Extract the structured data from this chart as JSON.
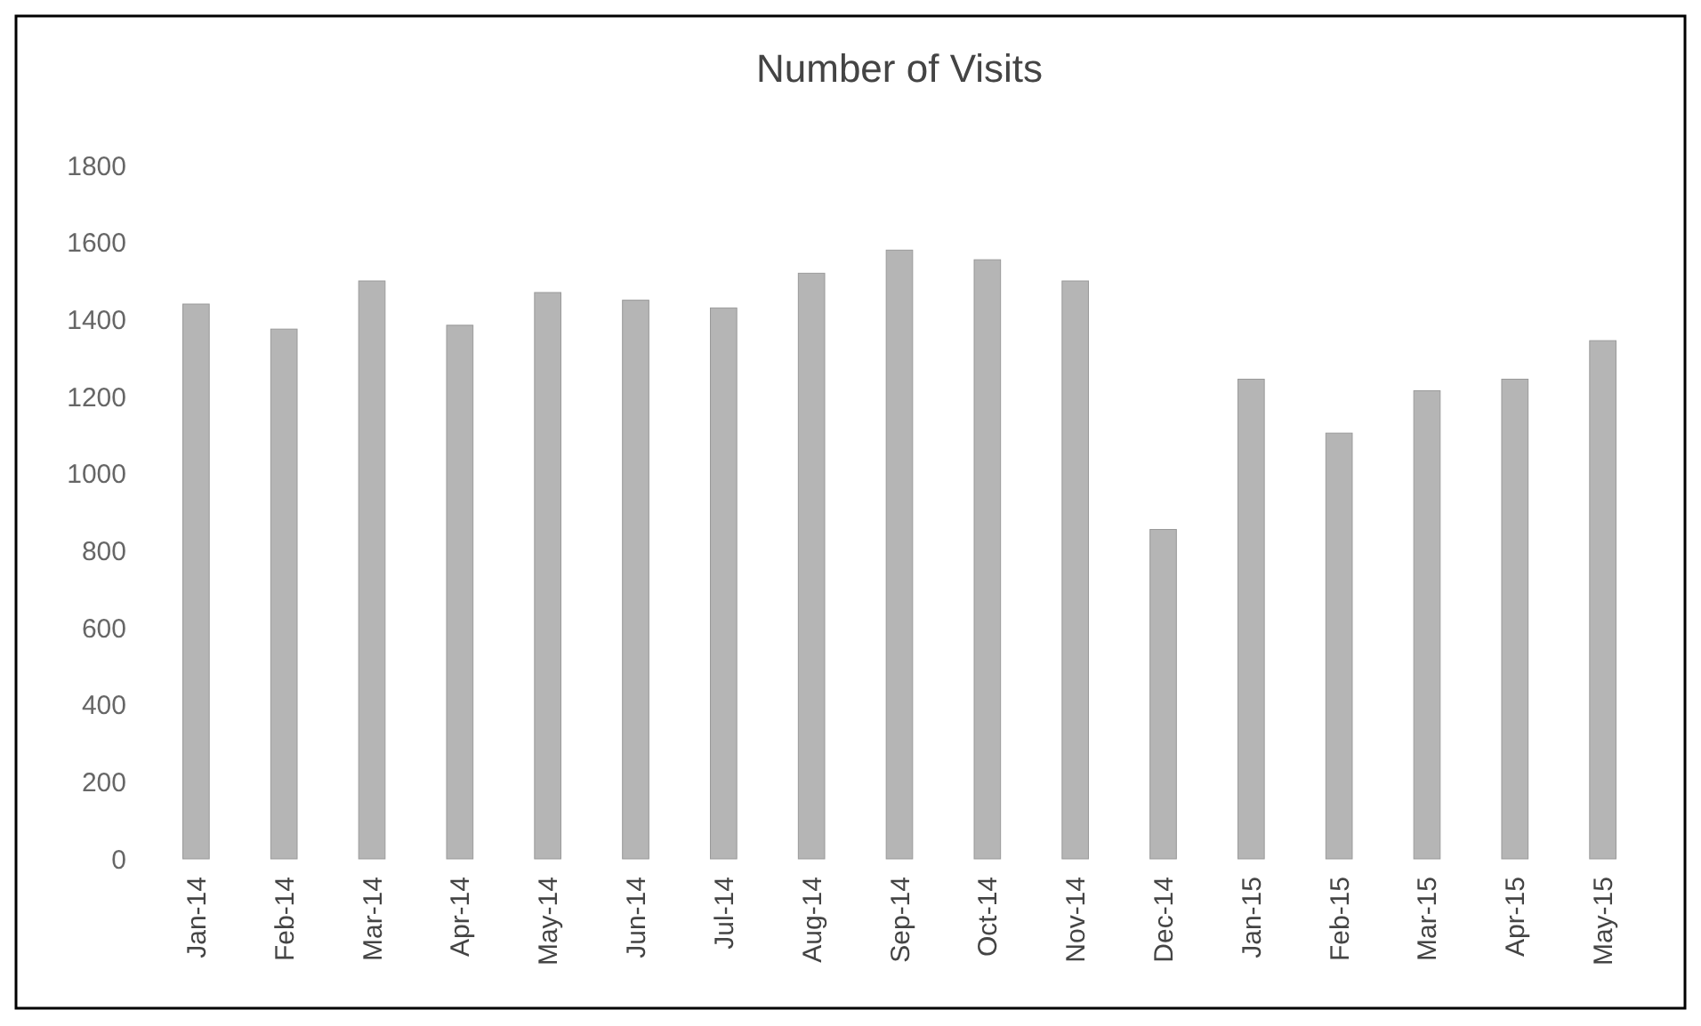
{
  "chart_data": {
    "type": "bar",
    "title": "Number of Visits",
    "categories": [
      "Jan-14",
      "Feb-14",
      "Mar-14",
      "Apr-14",
      "May-14",
      "Jun-14",
      "Jul-14",
      "Aug-14",
      "Sep-14",
      "Oct-14",
      "Nov-14",
      "Dec-14",
      "Jan-15",
      "Feb-15",
      "Mar-15",
      "Apr-15",
      "May-15"
    ],
    "values": [
      1440,
      1375,
      1500,
      1385,
      1470,
      1450,
      1430,
      1520,
      1580,
      1555,
      1500,
      855,
      1245,
      1105,
      1215,
      1245,
      1345
    ],
    "color": "#b5b5b5",
    "ylim": [
      0,
      1800
    ],
    "yticks": [
      0,
      200,
      400,
      600,
      800,
      1000,
      1200,
      1400,
      1600,
      1800
    ],
    "grid": false
  }
}
